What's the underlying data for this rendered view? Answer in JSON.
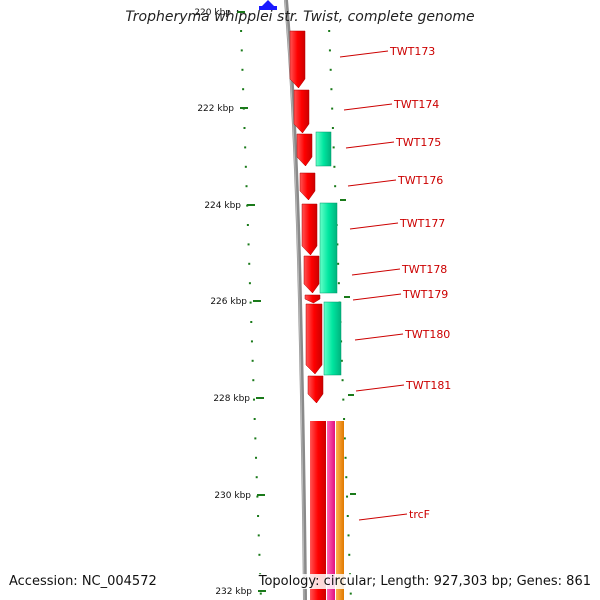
{
  "title": "Tropheryma whipplei str. Twist, complete genome",
  "footer": {
    "accession": "Accession: NC_004572",
    "summary": "Topology: circular; Length: 927,303 bp; Genes: 861"
  },
  "colors": {
    "forward_gene": "#ff0000",
    "reverse_gene": "#00e6a0",
    "rna_pink": "#ff1493",
    "rna_orange": "#ff8c00",
    "backbone": "#888888",
    "tick": "#1a7a1a",
    "label": "#cc0000"
  },
  "icons": {
    "top_marker": "blue-triangle-icon"
  },
  "scale": {
    "ticks": [
      {
        "label": "220 kbp"
      },
      {
        "label": "222 kbp"
      },
      {
        "label": "224 kbp"
      },
      {
        "label": "226 kbp"
      },
      {
        "label": "228 kbp"
      },
      {
        "label": "230 kbp"
      },
      {
        "label": "232 kbp"
      }
    ]
  },
  "genes": [
    {
      "name": "TWT173"
    },
    {
      "name": "TWT174"
    },
    {
      "name": "TWT175"
    },
    {
      "name": "TWT176"
    },
    {
      "name": "TWT177"
    },
    {
      "name": "TWT178"
    },
    {
      "name": "TWT179"
    },
    {
      "name": "TWT180"
    },
    {
      "name": "TWT181"
    },
    {
      "name": "trcF"
    }
  ]
}
